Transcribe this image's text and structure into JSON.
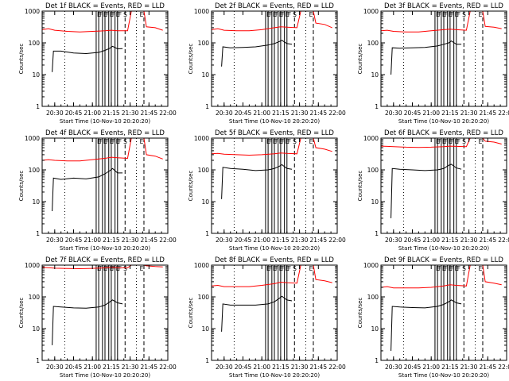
{
  "x_tick_labels": [
    "20:30",
    "20:45",
    "21:00",
    "21:15",
    "21:30",
    "21:45",
    "22:00"
  ],
  "x_label": "Start Time (10-Nov-10 20:20:20)",
  "y_label": "Counts/sec",
  "y_tick_labels": [
    "1",
    "10",
    "100",
    "1000"
  ],
  "flag_letters": {
    "E": "E",
    "F": "F",
    "S": "S"
  },
  "colors": {
    "events": "#000000",
    "lld": "#ff0000",
    "axes": "#000000"
  },
  "chart_data": [
    {
      "type": "line",
      "title": "Det 1f BLACK = Events, RED = LLD",
      "xlabel": "Start Time (10-Nov-10 20:20:20)",
      "ylabel": "Counts/sec",
      "xlim": [
        "20:20",
        "22:00"
      ],
      "ylim": [
        1,
        1000
      ],
      "yscale": "log",
      "series": [
        {
          "name": "Events",
          "color": "black",
          "x": [
            "20:28",
            "20:29",
            "20:35",
            "20:45",
            "20:55",
            "21:05",
            "21:10",
            "21:14",
            "21:16",
            "21:20",
            "21:24"
          ],
          "y": [
            12,
            55,
            55,
            48,
            46,
            50,
            58,
            68,
            78,
            65,
            66
          ]
        },
        {
          "name": "LLD",
          "color": "red",
          "x": [
            "20:20",
            "20:25",
            "20:30",
            "20:40",
            "20:50",
            "21:00",
            "21:10",
            "21:15",
            "21:20",
            "21:28",
            "21:31",
            "21:41",
            "21:43",
            "21:50",
            "21:56"
          ],
          "y": [
            260,
            280,
            250,
            230,
            220,
            230,
            240,
            250,
            240,
            240,
            1000,
            1000,
            320,
            300,
            250
          ]
        }
      ]
    },
    {
      "type": "line",
      "title": "Det 2f BLACK = Events, RED = LLD",
      "xlabel": "Start Time (10-Nov-10 20:20:20)",
      "ylabel": "Counts/sec",
      "xlim": [
        "20:20",
        "22:00"
      ],
      "ylim": [
        1,
        1000
      ],
      "yscale": "log",
      "series": [
        {
          "name": "Events",
          "color": "black",
          "x": [
            "20:28",
            "20:29",
            "20:35",
            "20:45",
            "20:55",
            "21:05",
            "21:10",
            "21:14",
            "21:16",
            "21:20",
            "21:24"
          ],
          "y": [
            18,
            75,
            70,
            72,
            75,
            85,
            95,
            110,
            120,
            95,
            90
          ]
        },
        {
          "name": "LLD",
          "color": "red",
          "x": [
            "20:20",
            "20:25",
            "20:30",
            "20:40",
            "20:50",
            "21:00",
            "21:10",
            "21:15",
            "21:20",
            "21:28",
            "21:31",
            "21:41",
            "21:43",
            "21:50",
            "21:56"
          ],
          "y": [
            260,
            280,
            250,
            240,
            240,
            260,
            300,
            320,
            310,
            300,
            1000,
            1000,
            420,
            380,
            300
          ]
        }
      ]
    },
    {
      "type": "line",
      "title": "Det 3f BLACK = Events, RED = LLD",
      "xlabel": "Start Time (10-Nov-10 20:20:20)",
      "ylabel": "Counts/sec",
      "xlim": [
        "20:20",
        "22:00"
      ],
      "ylim": [
        1,
        1000
      ],
      "yscale": "log",
      "series": [
        {
          "name": "Events",
          "color": "black",
          "x": [
            "20:28",
            "20:29",
            "20:35",
            "20:45",
            "20:55",
            "21:05",
            "21:10",
            "21:14",
            "21:16",
            "21:20",
            "21:24"
          ],
          "y": [
            10,
            70,
            68,
            70,
            72,
            80,
            90,
            100,
            115,
            90,
            90
          ]
        },
        {
          "name": "LLD",
          "color": "red",
          "x": [
            "20:20",
            "20:25",
            "20:30",
            "20:40",
            "20:50",
            "21:00",
            "21:10",
            "21:15",
            "21:20",
            "21:28",
            "21:31",
            "21:41",
            "21:43",
            "21:50",
            "21:56"
          ],
          "y": [
            240,
            250,
            230,
            220,
            220,
            240,
            260,
            270,
            260,
            250,
            1000,
            1000,
            330,
            310,
            280
          ]
        }
      ]
    },
    {
      "type": "line",
      "title": "Det 4f BLACK = Events, RED = LLD",
      "xlabel": "Start Time (10-Nov-10 20:20:20)",
      "ylabel": "Counts/sec",
      "xlim": [
        "20:20",
        "22:00"
      ],
      "ylim": [
        1,
        1000
      ],
      "yscale": "log",
      "series": [
        {
          "name": "Events",
          "color": "black",
          "x": [
            "20:28",
            "20:29",
            "20:35",
            "20:45",
            "20:55",
            "21:05",
            "21:10",
            "21:14",
            "21:16",
            "21:20",
            "21:24"
          ],
          "y": [
            5,
            55,
            50,
            55,
            52,
            60,
            75,
            95,
            110,
            80,
            80
          ]
        },
        {
          "name": "LLD",
          "color": "red",
          "x": [
            "20:20",
            "20:25",
            "20:30",
            "20:40",
            "20:50",
            "21:00",
            "21:10",
            "21:15",
            "21:20",
            "21:28",
            "21:31",
            "21:41",
            "21:43",
            "21:50",
            "21:56"
          ],
          "y": [
            200,
            210,
            200,
            190,
            190,
            210,
            230,
            250,
            240,
            230,
            1000,
            1000,
            300,
            270,
            220
          ]
        }
      ]
    },
    {
      "type": "line",
      "title": "Det 5f BLACK = Events, RED = LLD",
      "xlabel": "Start Time (10-Nov-10 20:20:20)",
      "ylabel": "Counts/sec",
      "xlim": [
        "20:20",
        "22:00"
      ],
      "ylim": [
        1,
        1000
      ],
      "yscale": "log",
      "series": [
        {
          "name": "Events",
          "color": "black",
          "x": [
            "20:28",
            "20:29",
            "20:35",
            "20:45",
            "20:55",
            "21:05",
            "21:10",
            "21:14",
            "21:16",
            "21:20",
            "21:24"
          ],
          "y": [
            12,
            120,
            110,
            105,
            95,
            100,
            110,
            130,
            145,
            110,
            105
          ]
        },
        {
          "name": "LLD",
          "color": "red",
          "x": [
            "20:20",
            "20:25",
            "20:30",
            "20:40",
            "20:50",
            "21:00",
            "21:10",
            "21:15",
            "21:20",
            "21:28",
            "21:31",
            "21:41",
            "21:43",
            "21:50",
            "21:56"
          ],
          "y": [
            320,
            330,
            310,
            300,
            290,
            300,
            320,
            340,
            330,
            320,
            1000,
            1000,
            500,
            450,
            380
          ]
        }
      ]
    },
    {
      "type": "line",
      "title": "Det 6f BLACK = Events, RED = LLD",
      "xlabel": "Start Time (10-Nov-10 20:20:20)",
      "ylabel": "Counts/sec",
      "xlim": [
        "20:20",
        "22:00"
      ],
      "ylim": [
        1,
        1000
      ],
      "yscale": "log",
      "series": [
        {
          "name": "Events",
          "color": "black",
          "x": [
            "20:28",
            "20:29",
            "20:35",
            "20:45",
            "20:55",
            "21:05",
            "21:10",
            "21:14",
            "21:16",
            "21:20",
            "21:24"
          ],
          "y": [
            3,
            110,
            105,
            100,
            95,
            100,
            110,
            140,
            150,
            115,
            105
          ]
        },
        {
          "name": "LLD",
          "color": "red",
          "x": [
            "20:20",
            "20:25",
            "20:30",
            "20:40",
            "20:50",
            "21:00",
            "21:10",
            "21:15",
            "21:20",
            "21:28",
            "21:31",
            "21:41",
            "21:43",
            "21:50",
            "21:56"
          ],
          "y": [
            560,
            550,
            540,
            520,
            510,
            520,
            540,
            560,
            550,
            540,
            1000,
            1000,
            800,
            750,
            650
          ]
        }
      ]
    },
    {
      "type": "line",
      "title": "Det 7f BLACK = Events, RED = LLD",
      "xlabel": "Start Time (10-Nov-10 20:20:20)",
      "ylabel": "Counts/sec",
      "xlim": [
        "20:20",
        "22:00"
      ],
      "ylim": [
        1,
        1000
      ],
      "yscale": "log",
      "series": [
        {
          "name": "Events",
          "color": "black",
          "x": [
            "20:28",
            "20:29",
            "20:35",
            "20:45",
            "20:55",
            "21:05",
            "21:10",
            "21:14",
            "21:16",
            "21:20",
            "21:24"
          ],
          "y": [
            3,
            50,
            48,
            45,
            44,
            48,
            55,
            70,
            80,
            65,
            60
          ]
        },
        {
          "name": "LLD",
          "color": "red",
          "x": [
            "20:20",
            "20:25",
            "20:30",
            "20:40",
            "20:50",
            "21:00",
            "21:10",
            "21:15",
            "21:20",
            "21:28",
            "21:31",
            "21:41",
            "21:43",
            "21:50",
            "21:56"
          ],
          "y": [
            850,
            830,
            800,
            780,
            770,
            790,
            820,
            850,
            830,
            820,
            1000,
            1000,
            950,
            900,
            880
          ]
        }
      ]
    },
    {
      "type": "line",
      "title": "Det 8f BLACK = Events, RED = LLD",
      "xlabel": "Start Time (10-Nov-10 20:20:20)",
      "ylabel": "Counts/sec",
      "xlim": [
        "20:20",
        "22:00"
      ],
      "ylim": [
        1,
        1000
      ],
      "yscale": "log",
      "series": [
        {
          "name": "Events",
          "color": "black",
          "x": [
            "20:28",
            "20:29",
            "20:35",
            "20:45",
            "20:55",
            "21:05",
            "21:10",
            "21:14",
            "21:16",
            "21:20",
            "21:24"
          ],
          "y": [
            8,
            60,
            55,
            55,
            55,
            60,
            70,
            90,
            105,
            80,
            75
          ]
        },
        {
          "name": "LLD",
          "color": "red",
          "x": [
            "20:20",
            "20:25",
            "20:30",
            "20:40",
            "20:50",
            "21:00",
            "21:10",
            "21:15",
            "21:20",
            "21:28",
            "21:31",
            "21:41",
            "21:43",
            "21:50",
            "21:56"
          ],
          "y": [
            220,
            230,
            210,
            210,
            210,
            230,
            260,
            290,
            280,
            270,
            1000,
            1000,
            350,
            320,
            280
          ]
        }
      ]
    },
    {
      "type": "line",
      "title": "Det 9f BLACK = Events, RED = LLD",
      "xlabel": "Start Time (10-Nov-10 20:20:20)",
      "ylabel": "Counts/sec",
      "xlim": [
        "20:20",
        "22:00"
      ],
      "ylim": [
        1,
        1000
      ],
      "yscale": "log",
      "series": [
        {
          "name": "Events",
          "color": "black",
          "x": [
            "20:28",
            "20:29",
            "20:35",
            "20:45",
            "20:55",
            "21:05",
            "21:10",
            "21:14",
            "21:16",
            "21:20",
            "21:24"
          ],
          "y": [
            2,
            50,
            48,
            46,
            45,
            50,
            58,
            70,
            80,
            65,
            60
          ]
        },
        {
          "name": "LLD",
          "color": "red",
          "x": [
            "20:20",
            "20:25",
            "20:30",
            "20:40",
            "20:50",
            "21:00",
            "21:10",
            "21:15",
            "21:20",
            "21:28",
            "21:31",
            "21:41",
            "21:43",
            "21:50",
            "21:56"
          ],
          "y": [
            200,
            210,
            190,
            190,
            190,
            200,
            220,
            240,
            230,
            220,
            1000,
            1000,
            300,
            270,
            240
          ]
        }
      ]
    }
  ]
}
